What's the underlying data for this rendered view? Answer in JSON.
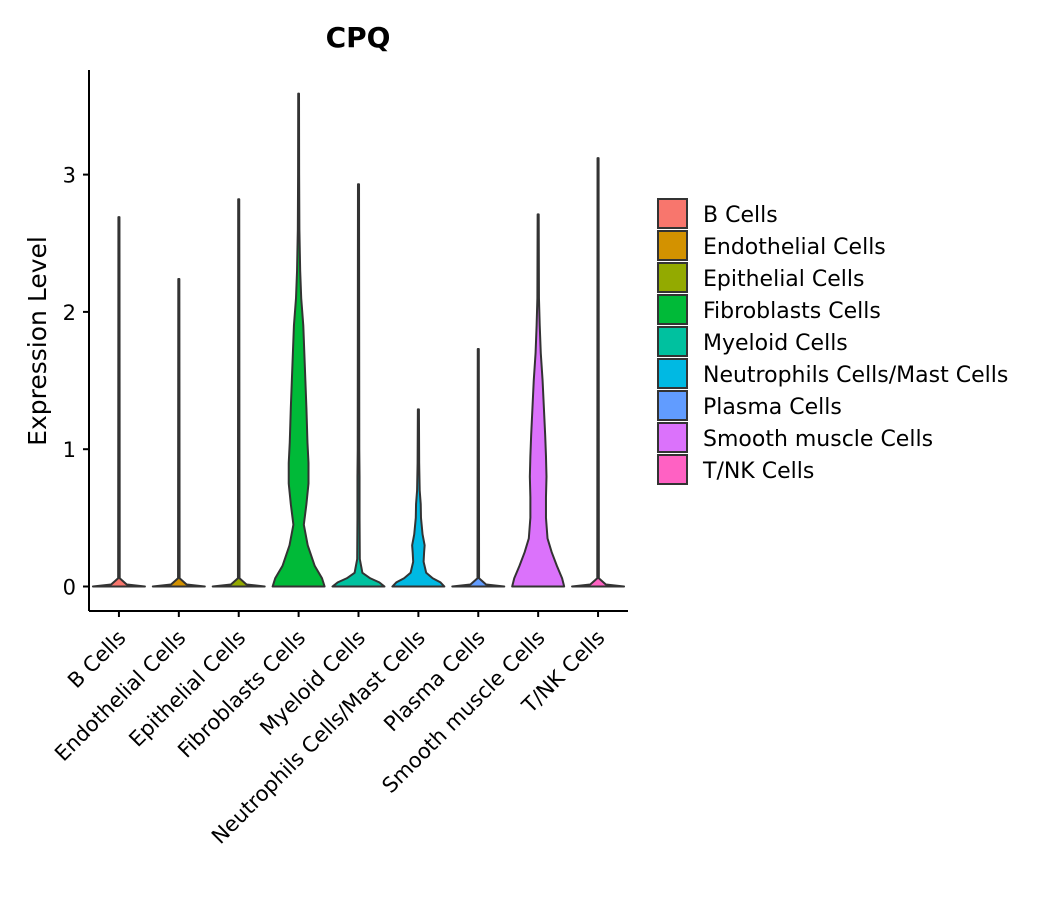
{
  "chart_data": {
    "type": "violin",
    "title": "CPQ",
    "xlabel": "",
    "ylabel": "Expression Level",
    "ylim": [
      -0.17,
      3.8
    ],
    "yticks": [
      0,
      1,
      2,
      3
    ],
    "ytick_labels": [
      "0",
      "1",
      "2",
      "3"
    ],
    "categories": [
      "B Cells",
      "Endothelial Cells",
      "Epithelial Cells",
      "Fibroblasts Cells",
      "Myeloid Cells",
      "Neutrophils Cells/Mast Cells",
      "Plasma Cells",
      "Smooth muscle Cells",
      "T/NK Cells"
    ],
    "legend_position": "right",
    "series": [
      {
        "name": "B Cells",
        "color": "#F8766D",
        "max": 2.69,
        "profile": [
          [
            0,
            1.0
          ],
          [
            0.015,
            0.3
          ],
          [
            0.06,
            0.03
          ],
          [
            2.69,
            0.02
          ]
        ]
      },
      {
        "name": "Endothelial Cells",
        "color": "#D39200",
        "max": 2.24,
        "profile": [
          [
            0,
            1.0
          ],
          [
            0.015,
            0.3
          ],
          [
            0.06,
            0.03
          ],
          [
            2.24,
            0.02
          ]
        ]
      },
      {
        "name": "Epithelial Cells",
        "color": "#93AA00",
        "max": 2.82,
        "profile": [
          [
            0,
            1.0
          ],
          [
            0.015,
            0.3
          ],
          [
            0.06,
            0.03
          ],
          [
            2.82,
            0.02
          ]
        ]
      },
      {
        "name": "Fibroblasts Cells",
        "color": "#00BA38",
        "max": 3.59,
        "profile": [
          [
            0,
            1.0
          ],
          [
            0.06,
            0.9
          ],
          [
            0.15,
            0.62
          ],
          [
            0.3,
            0.35
          ],
          [
            0.45,
            0.2
          ],
          [
            0.6,
            0.3
          ],
          [
            0.75,
            0.38
          ],
          [
            0.9,
            0.38
          ],
          [
            1.05,
            0.34
          ],
          [
            1.3,
            0.3
          ],
          [
            1.6,
            0.24
          ],
          [
            1.9,
            0.18
          ],
          [
            2.1,
            0.1
          ],
          [
            2.3,
            0.06
          ],
          [
            2.6,
            0.03
          ],
          [
            3.0,
            0.02
          ],
          [
            3.59,
            0.015
          ]
        ]
      },
      {
        "name": "Myeloid Cells",
        "color": "#00C19F",
        "max": 2.93,
        "profile": [
          [
            0,
            1.0
          ],
          [
            0.03,
            0.8
          ],
          [
            0.06,
            0.45
          ],
          [
            0.1,
            0.15
          ],
          [
            0.2,
            0.05
          ],
          [
            0.5,
            0.04
          ],
          [
            0.8,
            0.04
          ],
          [
            1.0,
            0.03
          ],
          [
            2.93,
            0.02
          ]
        ]
      },
      {
        "name": "Neutrophils Cells/Mast Cells",
        "color": "#00B9E3",
        "max": 1.29,
        "profile": [
          [
            0,
            1.0
          ],
          [
            0.03,
            0.85
          ],
          [
            0.06,
            0.55
          ],
          [
            0.1,
            0.3
          ],
          [
            0.18,
            0.2
          ],
          [
            0.25,
            0.22
          ],
          [
            0.3,
            0.24
          ],
          [
            0.38,
            0.16
          ],
          [
            0.5,
            0.1
          ],
          [
            0.6,
            0.09
          ],
          [
            0.7,
            0.05
          ],
          [
            0.9,
            0.03
          ],
          [
            1.29,
            0.02
          ]
        ]
      },
      {
        "name": "Plasma Cells",
        "color": "#619CFF",
        "max": 1.73,
        "profile": [
          [
            0,
            1.0
          ],
          [
            0.015,
            0.3
          ],
          [
            0.06,
            0.03
          ],
          [
            1.73,
            0.02
          ]
        ]
      },
      {
        "name": "Smooth muscle Cells",
        "color": "#DB72FB",
        "max": 2.71,
        "profile": [
          [
            0,
            1.0
          ],
          [
            0.06,
            0.92
          ],
          [
            0.15,
            0.72
          ],
          [
            0.25,
            0.52
          ],
          [
            0.35,
            0.36
          ],
          [
            0.5,
            0.3
          ],
          [
            0.65,
            0.3
          ],
          [
            0.8,
            0.32
          ],
          [
            0.95,
            0.3
          ],
          [
            1.1,
            0.27
          ],
          [
            1.3,
            0.22
          ],
          [
            1.5,
            0.17
          ],
          [
            1.7,
            0.1
          ],
          [
            1.9,
            0.06
          ],
          [
            2.1,
            0.03
          ],
          [
            2.71,
            0.02
          ]
        ]
      },
      {
        "name": "T/NK Cells",
        "color": "#FF61C3",
        "max": 3.12,
        "profile": [
          [
            0,
            1.0
          ],
          [
            0.015,
            0.3
          ],
          [
            0.06,
            0.03
          ],
          [
            3.12,
            0.02
          ]
        ]
      }
    ]
  }
}
